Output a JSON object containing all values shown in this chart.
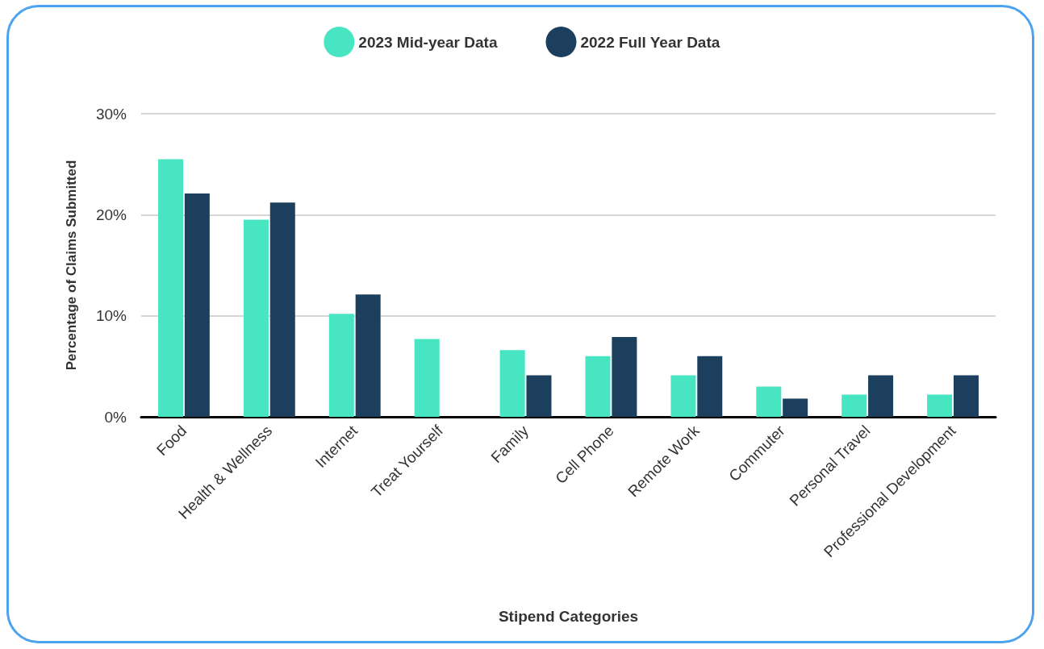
{
  "chart_data": {
    "type": "bar",
    "xlabel": "Stipend Categories",
    "ylabel": "Percentage of Claims Submitted",
    "categories": [
      "Food",
      "Health & Wellness",
      "Internet",
      "Treat Yourself",
      "Family",
      "Cell Phone",
      "Remote Work",
      "Commuter",
      "Personal Travel",
      "Professional Development"
    ],
    "series": [
      {
        "name": "2023 Mid-year Data",
        "color": "#48e5c2",
        "values": [
          25.5,
          19.5,
          10.2,
          7.7,
          6.6,
          6.0,
          4.1,
          3.0,
          2.2,
          2.2
        ]
      },
      {
        "name": "2022 Full Year Data",
        "color": "#1c3f5e",
        "values": [
          22.1,
          21.2,
          12.1,
          null,
          4.1,
          7.9,
          6.0,
          1.8,
          4.1,
          4.1
        ]
      }
    ],
    "ylim": [
      0,
      30
    ],
    "yticks": [
      {
        "value": 0,
        "label": "0%"
      },
      {
        "value": 10,
        "label": "10%"
      },
      {
        "value": 20,
        "label": "20%"
      },
      {
        "value": 30,
        "label": "30%"
      }
    ],
    "grid": "y",
    "legend": "top"
  }
}
